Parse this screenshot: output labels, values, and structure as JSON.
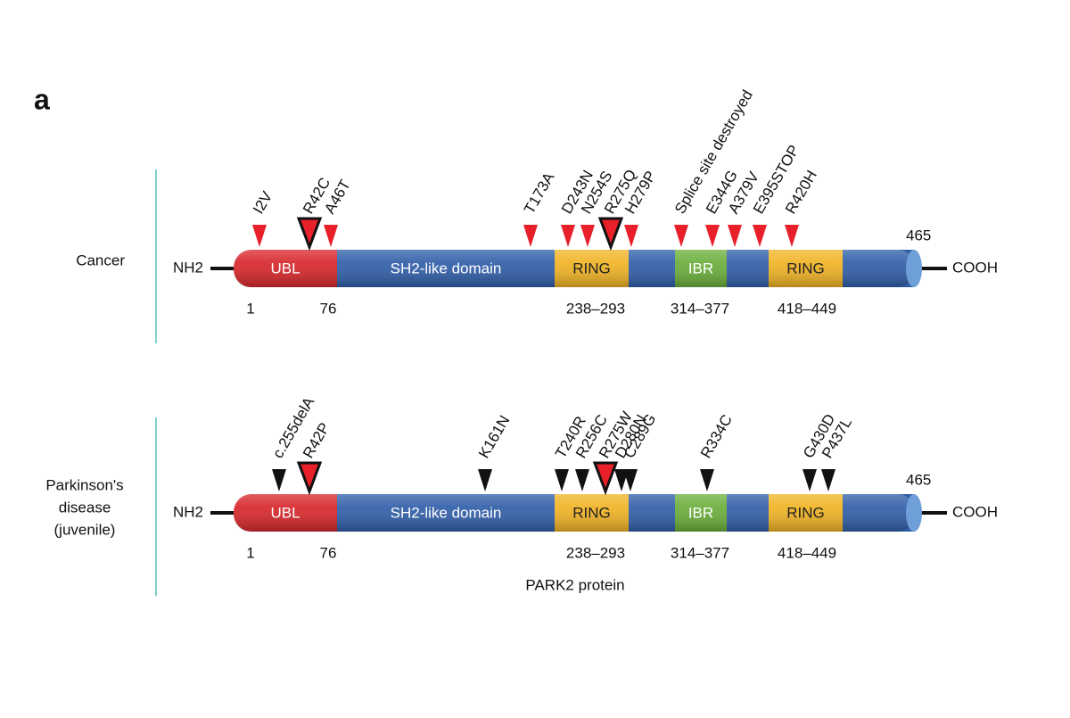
{
  "panel_label": "a",
  "tracks": [
    {
      "label": [
        "Cancer"
      ],
      "n_terminus": "NH2",
      "c_terminus": "COOH",
      "length": "465",
      "domains": [
        "UBL",
        "SH2-like domain",
        "RING",
        "IBR",
        "RING"
      ],
      "positions": [
        "1",
        "76",
        "238–293",
        "314–377",
        "418–449"
      ],
      "mutations": [
        "I2V",
        "R42C",
        "A46T",
        "T173A",
        "D243N",
        "N254S",
        "R275Q",
        "H279P",
        "Splice site destroyed",
        "E344G",
        "A379V",
        "E395STOP",
        "R420H"
      ]
    },
    {
      "label": [
        "Parkinson's",
        "disease",
        "(juvenile)"
      ],
      "n_terminus": "NH2",
      "c_terminus": "COOH",
      "length": "465",
      "domains": [
        "UBL",
        "SH2-like domain",
        "RING",
        "IBR",
        "RING"
      ],
      "positions": [
        "1",
        "76",
        "238–293",
        "314–377",
        "418–449"
      ],
      "mutations": [
        "c.255delA",
        "R42P",
        "K161N",
        "T240R",
        "R256C",
        "R275W",
        "D280N",
        "C289G",
        "R334C",
        "G430D",
        "P437L"
      ]
    }
  ],
  "footer": "PARK2 protein"
}
